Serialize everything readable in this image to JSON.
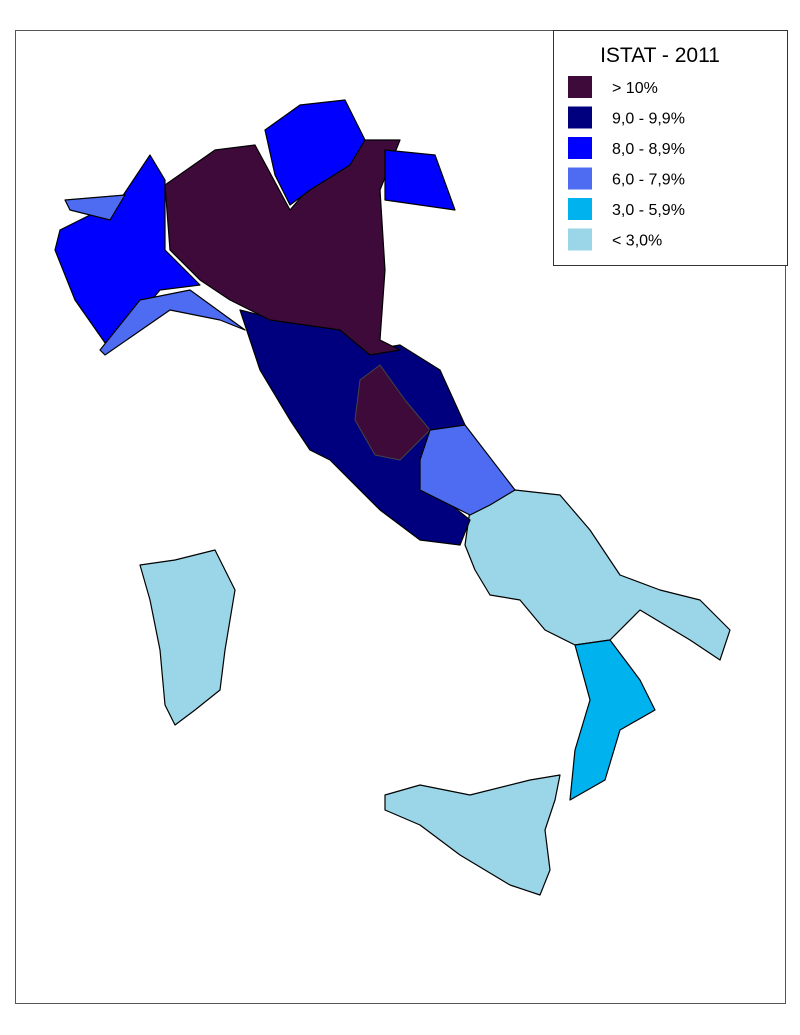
{
  "legend": {
    "title": "ISTAT - 2011",
    "items": [
      {
        "label": "> 10%",
        "color": "#3d0a3a"
      },
      {
        "label": "9,0 - 9,9%",
        "color": "#00007f"
      },
      {
        "label": "8,0 - 8,9%",
        "color": "#0000ff"
      },
      {
        "label": "6,0 - 7,9%",
        "color": "#4d6cf2"
      },
      {
        "label": "3,0 - 5,9%",
        "color": "#00b2ee"
      },
      {
        "label": "< 3,0%",
        "color": "#9bd6e8"
      }
    ]
  }
}
